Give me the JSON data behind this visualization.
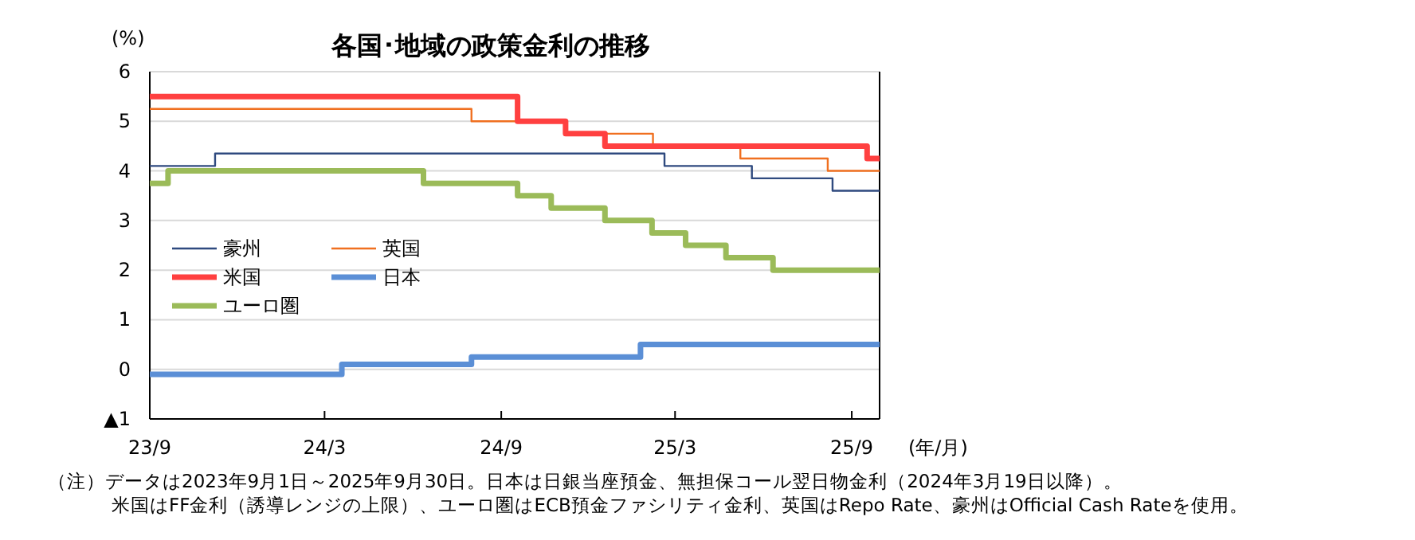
{
  "chart_data": {
    "type": "step",
    "title": "各国･地域の政策金利の推移",
    "ylabel": "(%)",
    "xlabel": "(年/月)",
    "xlim": [
      "2023-09-01",
      "2025-09-30"
    ],
    "xticks": [
      {
        "value": "2023-09-01",
        "label": "23/9"
      },
      {
        "value": "2024-03-01",
        "label": "24/3"
      },
      {
        "value": "2024-09-01",
        "label": "24/9"
      },
      {
        "value": "2025-03-01",
        "label": "25/3"
      },
      {
        "value": "2025-09-01",
        "label": "25/9"
      }
    ],
    "ylim": [
      -1,
      6
    ],
    "yticks": [
      {
        "value": -1,
        "label": "▲1"
      },
      0,
      1,
      2,
      3,
      4,
      5,
      6
    ],
    "grid": "y",
    "legend": "left",
    "series": [
      {
        "name": "豪州",
        "color": "#2f4a7f",
        "x": [
          "2023-09-01",
          "2023-11-08",
          "2025-02-18",
          "2025-05-20",
          "2025-08-12",
          "2025-09-30"
        ],
        "values": [
          4.1,
          4.35,
          4.1,
          3.85,
          3.6,
          3.6
        ]
      },
      {
        "name": "英国",
        "color": "#f07020",
        "x": [
          "2023-09-01",
          "2024-08-01",
          "2024-11-07",
          "2025-02-06",
          "2025-05-08",
          "2025-08-07",
          "2025-09-30"
        ],
        "values": [
          5.25,
          5.0,
          4.75,
          4.5,
          4.25,
          4.0,
          4.0
        ]
      },
      {
        "name": "米国",
        "color": "#ff4040",
        "x": [
          "2023-09-01",
          "2024-09-18",
          "2024-11-07",
          "2024-12-18",
          "2025-09-17",
          "2025-09-30"
        ],
        "values": [
          5.5,
          5.0,
          4.75,
          4.5,
          4.25,
          4.25
        ]
      },
      {
        "name": "日本",
        "color": "#5b8fd6",
        "x": [
          "2023-09-01",
          "2024-03-19",
          "2024-08-01",
          "2025-01-24",
          "2025-09-30"
        ],
        "values": [
          -0.1,
          0.1,
          0.25,
          0.5,
          0.5
        ]
      },
      {
        "name": "ユーロ圏",
        "color": "#9bbb59",
        "x": [
          "2023-09-01",
          "2023-09-20",
          "2024-06-12",
          "2024-09-18",
          "2024-10-23",
          "2024-12-18",
          "2025-02-05",
          "2025-03-12",
          "2025-04-23",
          "2025-06-11",
          "2025-09-30"
        ],
        "values": [
          3.75,
          4.0,
          3.75,
          3.5,
          3.25,
          3.0,
          2.75,
          2.5,
          2.25,
          2.0,
          2.0
        ]
      }
    ],
    "annotations": [
      "（注）データは2023年9月1日～2025年9月30日。日本は日銀当座預金、無担保コール翌日物金利（2024年3月19日以降）。",
      "米国はFF金利（誘導レンジの上限）、ユーロ圏はECB預金ファシリティ金利、英国はRepo Rate、豪州はOfficial Cash Rateを使用。"
    ]
  }
}
